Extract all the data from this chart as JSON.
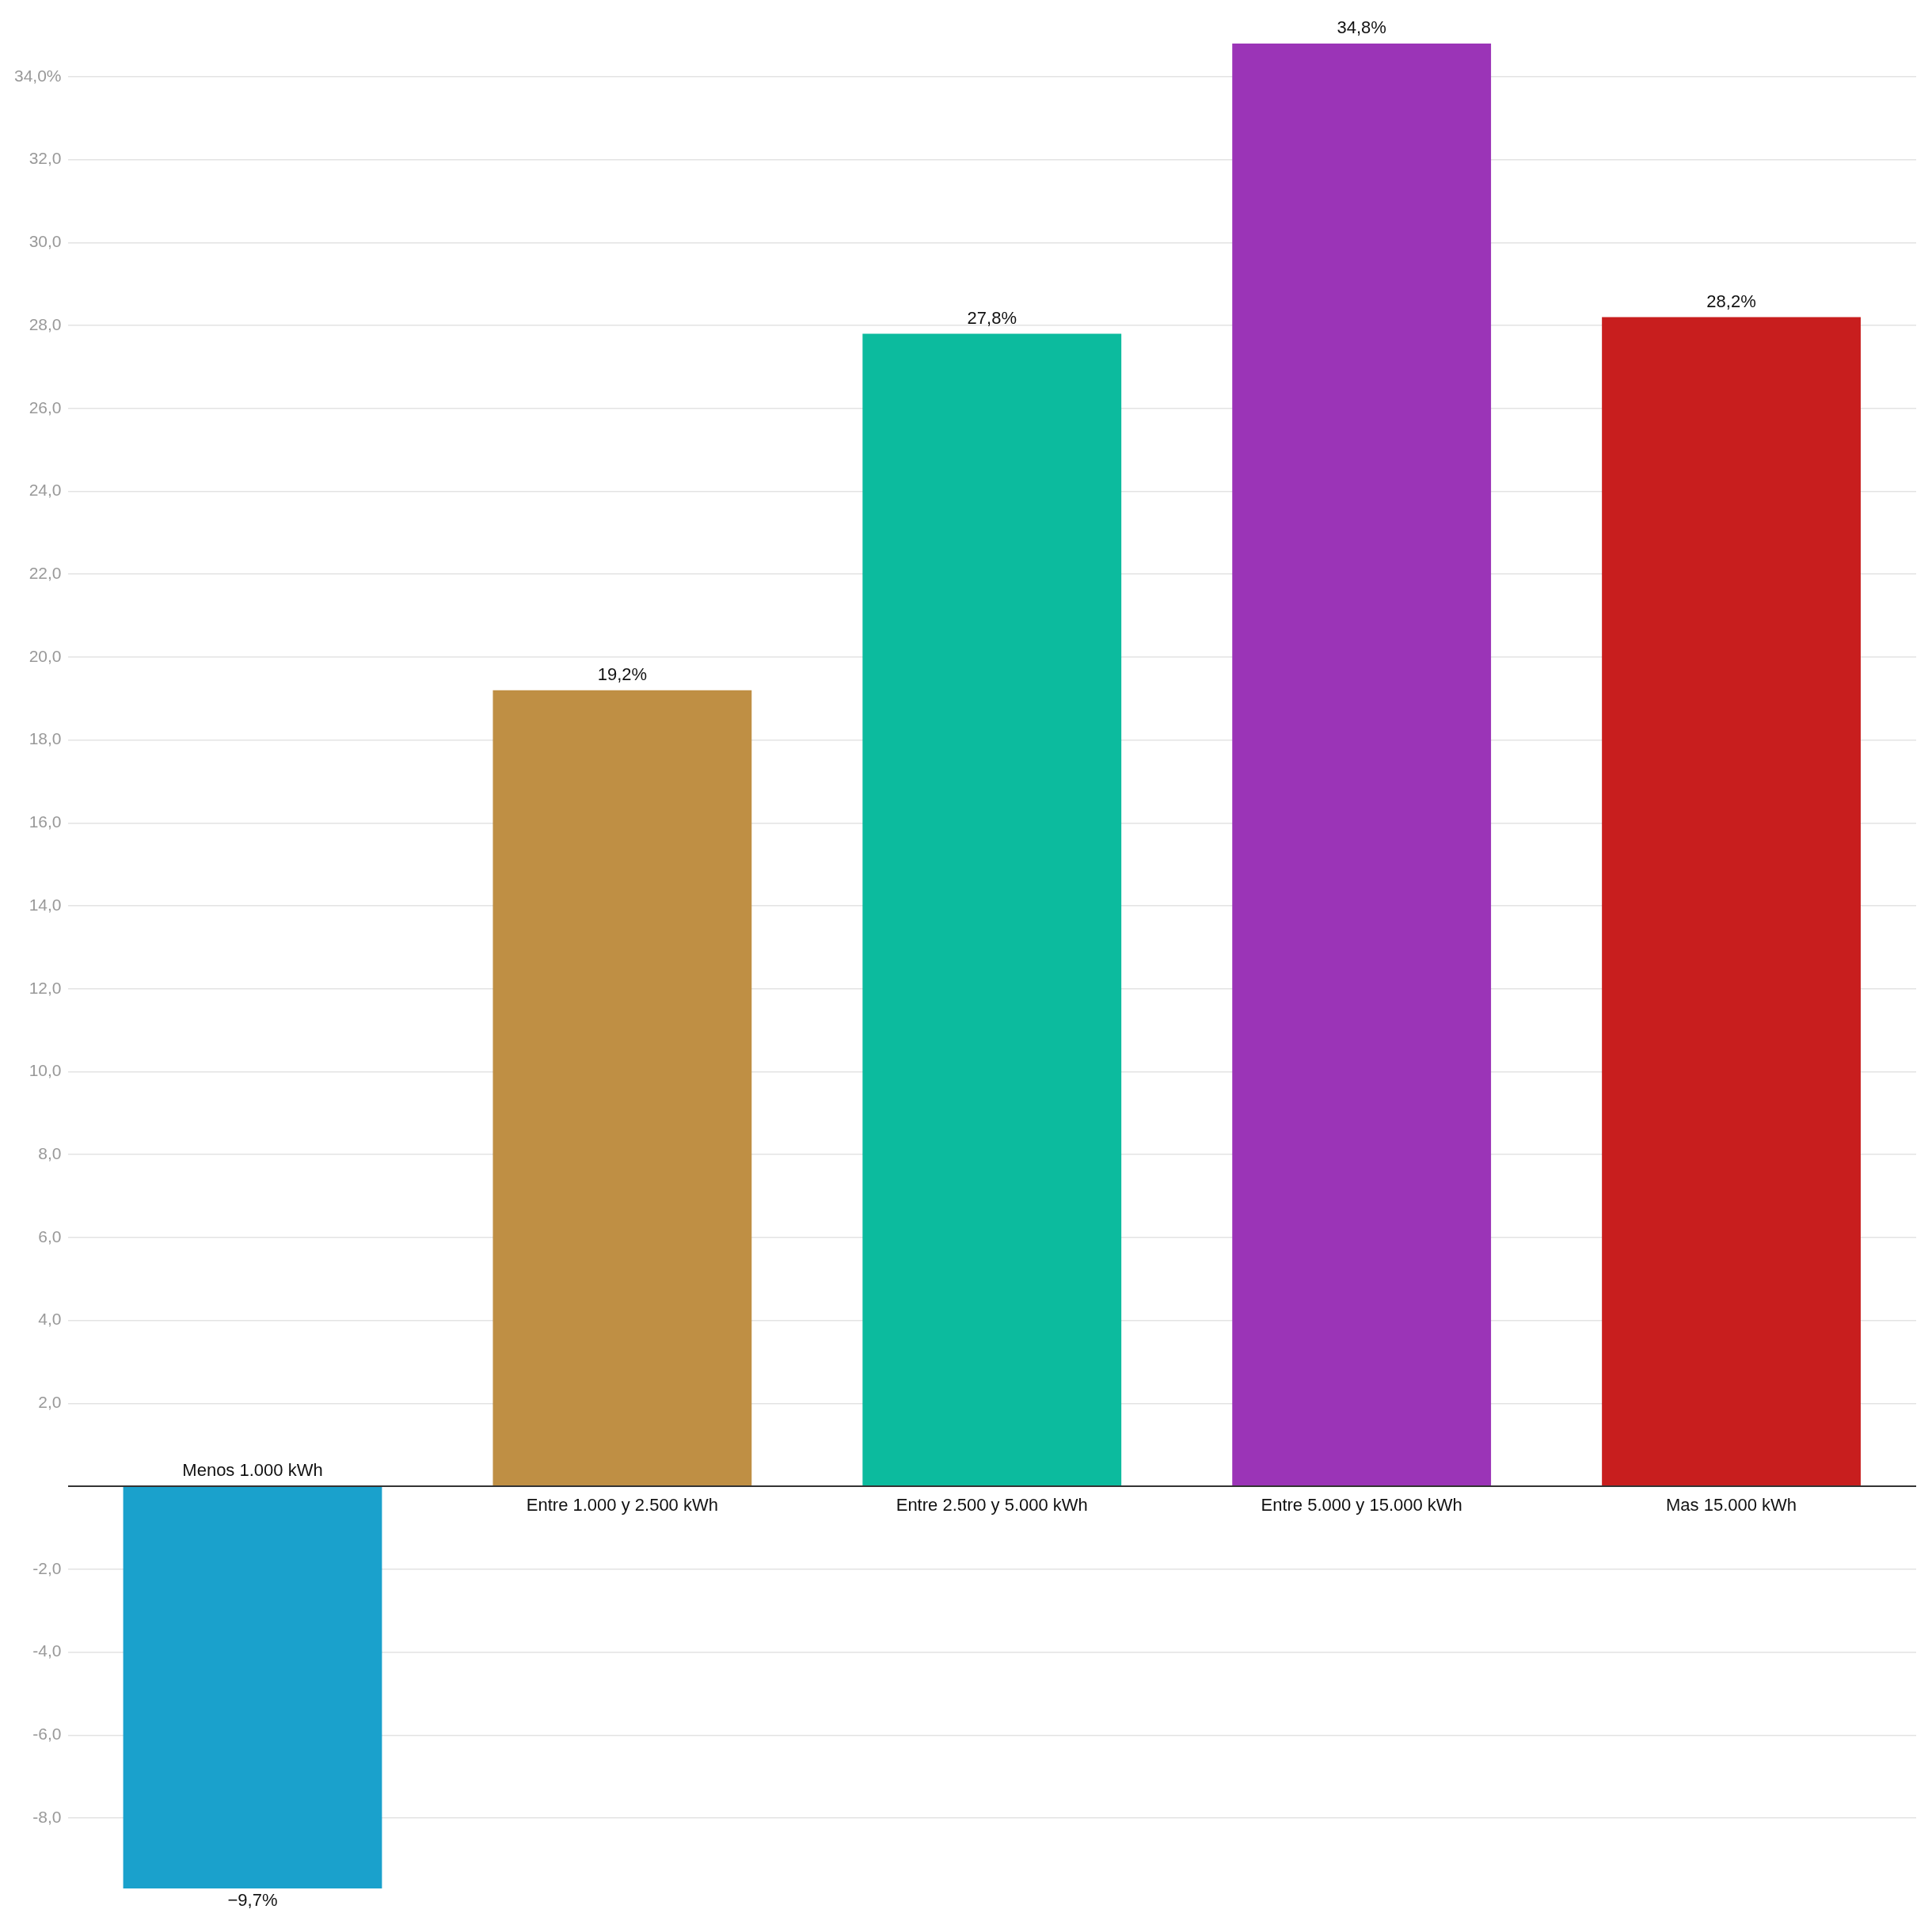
{
  "chart_data": {
    "type": "bar",
    "categories": [
      "Menos 1.000 kWh",
      "Entre 1.000 y 2.500 kWh",
      "Entre 2.500 y 5.000 kWh",
      "Entre 5.000 y 15.000 kWh",
      "Mas 15.000 kWh"
    ],
    "values": [
      -9.7,
      19.2,
      27.8,
      34.8,
      28.2
    ],
    "colors": [
      "#1aa1cc",
      "#bf8f44",
      "#0cbb9e",
      "#9b34b7",
      "#c81e1e"
    ],
    "value_labels": [
      "−9,7%",
      "19,2%",
      "27,8%",
      "34,8%",
      "28,2%"
    ],
    "ylim": [
      -9.7,
      34.8
    ],
    "yticks": [
      {
        "value": -8,
        "label": "-8,0"
      },
      {
        "value": -6,
        "label": "-6,0"
      },
      {
        "value": -4,
        "label": "-4,0"
      },
      {
        "value": -2,
        "label": "-2,0"
      },
      {
        "value": 0,
        "label": null
      },
      {
        "value": 2,
        "label": "2,0"
      },
      {
        "value": 4,
        "label": "4,0"
      },
      {
        "value": 6,
        "label": "6,0"
      },
      {
        "value": 8,
        "label": "8,0"
      },
      {
        "value": 10,
        "label": "10,0"
      },
      {
        "value": 12,
        "label": "12,0"
      },
      {
        "value": 14,
        "label": "14,0"
      },
      {
        "value": 16,
        "label": "16,0"
      },
      {
        "value": 18,
        "label": "18,0"
      },
      {
        "value": 20,
        "label": "20,0"
      },
      {
        "value": 22,
        "label": "22,0"
      },
      {
        "value": 24,
        "label": "24,0"
      },
      {
        "value": 26,
        "label": "26,0"
      },
      {
        "value": 28,
        "label": "28,0"
      },
      {
        "value": 30,
        "label": "30,0"
      },
      {
        "value": 32,
        "label": "32,0"
      },
      {
        "value": 34,
        "label": "34,0%"
      }
    ],
    "grid": "y"
  }
}
